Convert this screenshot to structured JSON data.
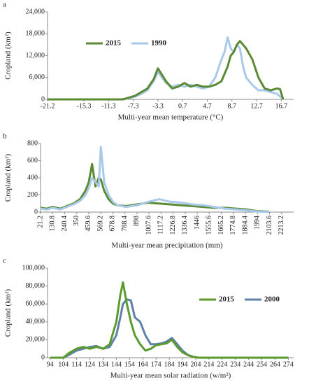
{
  "chart_data": [
    {
      "type": "line",
      "panel": "a",
      "xlabel": "Multi-year mean temperature (°C)",
      "ylabel": "Cropland (km²)",
      "x": [
        -21.2,
        -9,
        -8,
        -7,
        -6,
        -5,
        -4,
        -3.3,
        -2,
        -1,
        0,
        1,
        2,
        3,
        4,
        5,
        6,
        7,
        7.5,
        8,
        8.5,
        9,
        9.5,
        10,
        10.5,
        11,
        12,
        13,
        14,
        15,
        16,
        16.5,
        17
      ],
      "series": [
        {
          "name": "2015",
          "color": "#5a8a34",
          "values": [
            0,
            0,
            500,
            1000,
            2000,
            3000,
            5500,
            8500,
            5000,
            3000,
            3500,
            4500,
            3500,
            4000,
            3500,
            3500,
            4000,
            5000,
            7000,
            9000,
            12000,
            13000,
            15000,
            16000,
            15000,
            14000,
            11000,
            6000,
            3000,
            2500,
            3000,
            2800,
            0
          ]
        },
        {
          "name": "1990",
          "color": "#a9c9ea",
          "values": [
            0,
            0,
            300,
            800,
            1500,
            2500,
            5000,
            7500,
            4500,
            3500,
            4000,
            3500,
            4000,
            3500,
            3000,
            3500,
            6000,
            11000,
            13000,
            17000,
            14000,
            13000,
            15000,
            14000,
            9000,
            6000,
            4000,
            2500,
            2500,
            2000,
            1500,
            800,
            0
          ]
        }
      ],
      "xlim": [
        -21.2,
        18.7
      ],
      "xticks": [
        -21.2,
        -15.3,
        -11.3,
        -7.3,
        -3.3,
        0.7,
        4.7,
        8.7,
        12.7,
        16.7
      ],
      "ylim": [
        0,
        24000
      ],
      "yticks": [
        0,
        {
          "value": 6000,
          "label": "6,000"
        },
        {
          "value": 12000,
          "label": "12,000"
        },
        {
          "value": 18000,
          "label": "18,000"
        },
        {
          "value": 24000,
          "label": "24,000"
        }
      ],
      "legend": "upper left"
    },
    {
      "type": "line",
      "panel": "b",
      "xlabel": "Multi-year mean precipitation (mm)",
      "ylabel": "Cropland (km²)",
      "x": [
        21,
        80,
        130,
        200,
        260,
        320,
        380,
        430,
        460,
        490,
        520,
        550,
        570,
        600,
        640,
        680,
        720,
        800,
        900,
        1000,
        1100,
        1200,
        1300,
        1400,
        1500,
        1600,
        1700,
        1800,
        1900,
        2000,
        2100
      ],
      "series": [
        {
          "color": "#a9c9ea",
          "values": [
            40,
            30,
            50,
            30,
            60,
            90,
            130,
            200,
            280,
            400,
            350,
            300,
            760,
            350,
            200,
            120,
            80,
            60,
            80,
            120,
            150,
            120,
            110,
            90,
            80,
            60,
            40,
            30,
            20,
            5,
            2
          ]
        },
        {
          "color": "#5a8a34",
          "values": [
            50,
            40,
            60,
            40,
            70,
            100,
            150,
            250,
            350,
            560,
            300,
            400,
            380,
            250,
            150,
            100,
            80,
            70,
            90,
            110,
            100,
            90,
            80,
            70,
            60,
            50,
            50,
            40,
            30,
            10,
            5
          ]
        }
      ],
      "xlim": [
        21.2,
        2322.8
      ],
      "xticks": [
        21.2,
        130.8,
        240.4,
        350,
        459.6,
        569.2,
        678.8,
        788.4,
        898,
        1007.6,
        1117.2,
        1226.8,
        1336.4,
        1446,
        1555.6,
        1665.2,
        1774.8,
        1884.4,
        1994,
        2103.6,
        2213.2
      ],
      "ylim": [
        0,
        800
      ],
      "yticks": [
        0,
        200,
        400,
        600,
        800
      ],
      "rotate_xticks": true
    },
    {
      "type": "line",
      "panel": "c",
      "xlabel": "Multi-year mean solar radiation (w/m²)",
      "ylabel": "Cropland (km²)",
      "x": [
        94,
        104,
        108,
        114,
        119,
        124,
        129,
        134,
        139,
        144,
        147,
        149,
        152,
        155,
        158,
        162,
        166,
        170,
        174,
        178,
        182,
        186,
        190,
        194,
        198,
        202,
        206,
        214,
        274
      ],
      "series": [
        {
          "name": "2015",
          "color": "#5a9a2e",
          "values": [
            0,
            0,
            5000,
            10000,
            12000,
            10000,
            12000,
            10000,
            15000,
            40000,
            70000,
            84000,
            60000,
            40000,
            25000,
            15000,
            8000,
            10000,
            14000,
            15000,
            16000,
            20000,
            12000,
            6000,
            3000,
            1000,
            0,
            0,
            0
          ]
        },
        {
          "name": "2000",
          "color": "#5f80a8",
          "values": [
            0,
            0,
            3000,
            8000,
            10000,
            12000,
            13000,
            10000,
            12000,
            25000,
            45000,
            60000,
            65000,
            64000,
            45000,
            40000,
            25000,
            15000,
            15000,
            16000,
            18000,
            22000,
            15000,
            8000,
            3000,
            1000,
            0,
            0,
            0
          ]
        }
      ],
      "xlim": [
        92,
        278
      ],
      "xticks": [
        94,
        104,
        114,
        124,
        134,
        144,
        154,
        164,
        174,
        184,
        194,
        204,
        214,
        224,
        234,
        244,
        254,
        264,
        274
      ],
      "ylim": [
        0,
        100000
      ],
      "yticks": [
        0,
        {
          "value": 20000,
          "label": "20,000"
        },
        {
          "value": 40000,
          "label": "40,000"
        },
        {
          "value": 60000,
          "label": "60,000"
        },
        {
          "value": 80000,
          "label": "80,000"
        },
        {
          "value": 100000,
          "label": "100,000"
        }
      ],
      "legend": "upper right"
    }
  ]
}
